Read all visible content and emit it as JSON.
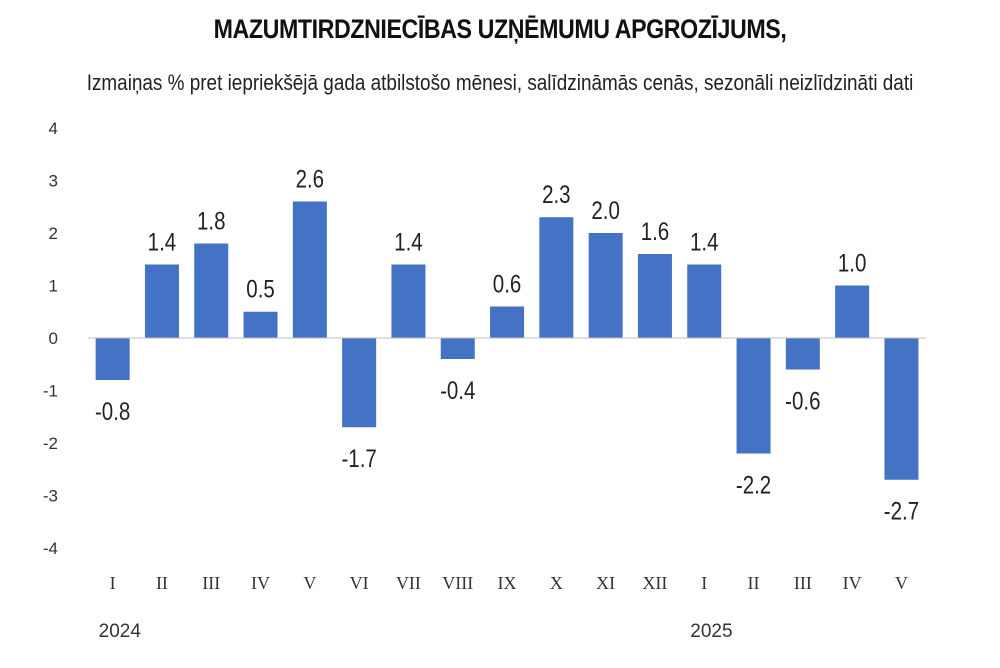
{
  "chart_data": {
    "type": "bar",
    "title": "MAZUMTIRDZNIECĪBAS UZŅĒMUMU APGROZĪJUMS,",
    "subtitle": "Izmaiņas % pret iepriekšējā gada atbilstošo mēnesi, salīdzināmās cenās, sezonāli neizlīdzināti dati",
    "categories": [
      "I",
      "II",
      "III",
      "IV",
      "V",
      "VI",
      "VII",
      "VIII",
      "IX",
      "X",
      "XI",
      "XII",
      "I",
      "II",
      "III",
      "IV",
      "V"
    ],
    "values": [
      -0.8,
      1.4,
      1.8,
      0.5,
      2.6,
      -1.7,
      1.4,
      -0.4,
      0.6,
      2.3,
      2.0,
      1.6,
      1.4,
      -2.2,
      -0.6,
      1.0,
      -2.7
    ],
    "value_labels": [
      "-0.8",
      "1.4",
      "1.8",
      "0.5",
      "2.6",
      "-1.7",
      "1.4",
      "-0.4",
      "0.6",
      "2.3",
      "2.0",
      "1.6",
      "1.4",
      "-2.2",
      "-0.6",
      "1.0",
      "-2.7"
    ],
    "year_labels": [
      {
        "category_index": 0,
        "text": "2024"
      },
      {
        "category_index": 12,
        "text": "2025"
      }
    ],
    "yticks": [
      "4",
      "3",
      "2",
      "1",
      "0",
      "-1",
      "-2",
      "-3",
      "-4"
    ],
    "ylim": [
      -4,
      4
    ],
    "grid": false,
    "legend": "none",
    "bar_color": "#4472C4",
    "axis_color": "#BFBFBF"
  }
}
